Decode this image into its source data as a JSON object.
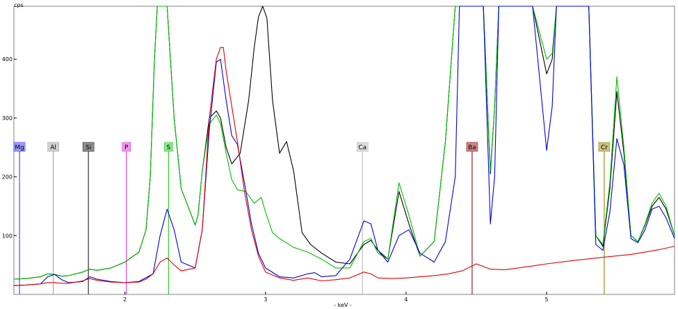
{
  "chart_data": {
    "type": "line",
    "xlabel": "- keV -",
    "ylabel": "cps",
    "xlim": [
      1.21,
      5.91
    ],
    "ylim": [
      0,
      490
    ],
    "x_ticks": [
      {
        "value": 2,
        "label": "2"
      },
      {
        "value": 3,
        "label": "3"
      },
      {
        "value": 4,
        "label": "4"
      },
      {
        "value": 5,
        "label": "5"
      }
    ],
    "y_ticks": [
      {
        "value": 100,
        "label": "100"
      },
      {
        "value": 200,
        "label": "200"
      },
      {
        "value": 300,
        "label": "300"
      },
      {
        "value": 400,
        "label": "400"
      }
    ],
    "element_markers": [
      {
        "label": "Mg",
        "energy": 1.25,
        "color": "#4a4aff"
      },
      {
        "label": "Al",
        "energy": 1.49,
        "color": "#a8a8a8"
      },
      {
        "label": "Si",
        "energy": 1.74,
        "color": "#303030"
      },
      {
        "label": "P",
        "energy": 2.01,
        "color": "#e040e0"
      },
      {
        "label": "S",
        "energy": 2.31,
        "color": "#30d030"
      },
      {
        "label": "Ca",
        "energy": 3.69,
        "color": "#c0c0c0"
      },
      {
        "label": "Ba",
        "energy": 4.47,
        "color": "#a02020"
      },
      {
        "label": "Cr",
        "energy": 5.41,
        "color": "#9a8a20"
      }
    ],
    "series": [
      {
        "color": "#000000",
        "x": [
          1.21,
          1.3,
          1.4,
          1.45,
          1.5,
          1.55,
          1.6,
          1.7,
          1.75,
          1.8,
          1.9,
          2.0,
          2.1,
          2.15,
          2.18,
          2.21,
          2.23,
          2.25,
          2.3,
          2.35,
          2.4,
          2.5,
          2.52,
          2.55,
          2.6,
          2.65,
          2.68,
          2.72,
          2.76,
          2.82,
          2.88,
          2.92,
          2.95,
          2.98,
          3.01,
          3.05,
          3.1,
          3.15,
          3.2,
          3.26,
          3.32,
          3.4,
          3.5,
          3.6,
          3.7,
          3.75,
          3.8,
          3.87,
          3.95,
          4.02,
          4.1,
          4.2,
          4.28,
          4.35,
          4.38,
          4.42,
          4.55,
          4.6,
          4.63,
          4.66,
          4.7,
          4.75,
          4.9,
          5.0,
          5.04,
          5.07,
          5.11,
          5.15,
          5.3,
          5.35,
          5.4,
          5.45,
          5.5,
          5.55,
          5.6,
          5.65,
          5.7,
          5.75,
          5.8,
          5.85,
          5.91
        ],
        "y": [
          26,
          27,
          30,
          35,
          34,
          31,
          32,
          38,
          43,
          41,
          45,
          55,
          72,
          110,
          200,
          400,
          490,
          490,
          490,
          300,
          180,
          118,
          135,
          210,
          300,
          312,
          300,
          250,
          222,
          240,
          330,
          420,
          472,
          490,
          470,
          330,
          240,
          260,
          210,
          105,
          85,
          70,
          55,
          52,
          85,
          92,
          75,
          60,
          175,
          120,
          65,
          90,
          260,
          490,
          490,
          490,
          490,
          205,
          320,
          490,
          490,
          490,
          490,
          375,
          400,
          490,
          490,
          490,
          490,
          100,
          82,
          180,
          345,
          240,
          100,
          90,
          118,
          150,
          165,
          145,
          100
        ]
      },
      {
        "color": "#00c000",
        "x": [
          1.21,
          1.3,
          1.4,
          1.45,
          1.5,
          1.55,
          1.6,
          1.7,
          1.75,
          1.8,
          1.9,
          2.0,
          2.1,
          2.15,
          2.18,
          2.21,
          2.23,
          2.25,
          2.3,
          2.35,
          2.4,
          2.5,
          2.52,
          2.55,
          2.6,
          2.65,
          2.68,
          2.72,
          2.76,
          2.8,
          2.86,
          2.92,
          2.97,
          3.0,
          3.05,
          3.1,
          3.2,
          3.3,
          3.4,
          3.5,
          3.6,
          3.7,
          3.75,
          3.8,
          3.87,
          3.95,
          4.02,
          4.1,
          4.2,
          4.28,
          4.35,
          4.38,
          4.42,
          4.55,
          4.6,
          4.63,
          4.66,
          4.7,
          4.75,
          4.9,
          5.0,
          5.04,
          5.07,
          5.11,
          5.15,
          5.3,
          5.35,
          5.4,
          5.45,
          5.5,
          5.55,
          5.6,
          5.65,
          5.7,
          5.75,
          5.8,
          5.85,
          5.91
        ],
        "y": [
          26,
          27,
          30,
          35,
          34,
          31,
          32,
          38,
          43,
          41,
          45,
          55,
          72,
          110,
          200,
          400,
          490,
          490,
          490,
          300,
          180,
          118,
          135,
          210,
          290,
          305,
          290,
          240,
          195,
          178,
          175,
          155,
          165,
          140,
          105,
          95,
          80,
          72,
          60,
          45,
          45,
          90,
          95,
          70,
          60,
          190,
          135,
          65,
          90,
          260,
          490,
          490,
          490,
          490,
          210,
          320,
          490,
          490,
          490,
          490,
          400,
          410,
          490,
          490,
          490,
          490,
          100,
          85,
          190,
          370,
          250,
          100,
          90,
          120,
          155,
          172,
          150,
          100
        ]
      },
      {
        "color": "#0000dd",
        "x": [
          1.21,
          1.3,
          1.4,
          1.45,
          1.5,
          1.55,
          1.6,
          1.7,
          1.75,
          1.8,
          1.9,
          2.0,
          2.1,
          2.2,
          2.25,
          2.3,
          2.35,
          2.4,
          2.5,
          2.55,
          2.6,
          2.65,
          2.68,
          2.72,
          2.76,
          2.8,
          2.85,
          2.9,
          2.95,
          3.0,
          3.1,
          3.2,
          3.3,
          3.35,
          3.4,
          3.5,
          3.6,
          3.7,
          3.75,
          3.8,
          3.87,
          3.95,
          4.02,
          4.1,
          4.2,
          4.28,
          4.35,
          4.38,
          4.42,
          4.55,
          4.6,
          4.63,
          4.66,
          4.7,
          4.75,
          4.9,
          5.0,
          5.04,
          5.07,
          5.11,
          5.15,
          5.3,
          5.35,
          5.4,
          5.45,
          5.5,
          5.55,
          5.6,
          5.65,
          5.7,
          5.75,
          5.8,
          5.85,
          5.91
        ],
        "y": [
          15,
          16,
          18,
          30,
          34,
          25,
          20,
          22,
          30,
          26,
          22,
          20,
          22,
          35,
          100,
          145,
          110,
          55,
          45,
          110,
          280,
          395,
          400,
          330,
          270,
          255,
          190,
          120,
          70,
          45,
          30,
          28,
          35,
          37,
          30,
          32,
          60,
          125,
          120,
          75,
          55,
          100,
          110,
          70,
          55,
          90,
          200,
          490,
          490,
          490,
          120,
          200,
          490,
          490,
          490,
          490,
          245,
          320,
          490,
          490,
          490,
          490,
          85,
          75,
          140,
          265,
          220,
          95,
          88,
          110,
          145,
          150,
          130,
          95
        ]
      },
      {
        "color": "#dd0000",
        "x": [
          1.21,
          1.3,
          1.4,
          1.45,
          1.5,
          1.55,
          1.6,
          1.7,
          1.75,
          1.8,
          1.9,
          2.0,
          2.1,
          2.15,
          2.2,
          2.25,
          2.3,
          2.35,
          2.4,
          2.5,
          2.55,
          2.6,
          2.65,
          2.68,
          2.7,
          2.72,
          2.76,
          2.8,
          2.85,
          2.9,
          2.95,
          3.0,
          3.1,
          3.2,
          3.3,
          3.4,
          3.5,
          3.6,
          3.7,
          3.75,
          3.8,
          3.9,
          4.0,
          4.1,
          4.2,
          4.3,
          4.4,
          4.5,
          4.6,
          4.7,
          4.8,
          5.0,
          5.2,
          5.4,
          5.6,
          5.8,
          5.91
        ],
        "y": [
          15,
          16,
          18,
          20,
          20,
          19,
          19,
          23,
          27,
          24,
          21,
          20,
          21,
          26,
          35,
          55,
          62,
          50,
          40,
          45,
          110,
          300,
          400,
          420,
          420,
          380,
          320,
          260,
          175,
          110,
          65,
          38,
          28,
          24,
          28,
          23,
          25,
          28,
          38,
          35,
          28,
          27,
          28,
          30,
          32,
          35,
          40,
          52,
          43,
          42,
          45,
          52,
          58,
          63,
          68,
          76,
          82
        ]
      }
    ]
  }
}
